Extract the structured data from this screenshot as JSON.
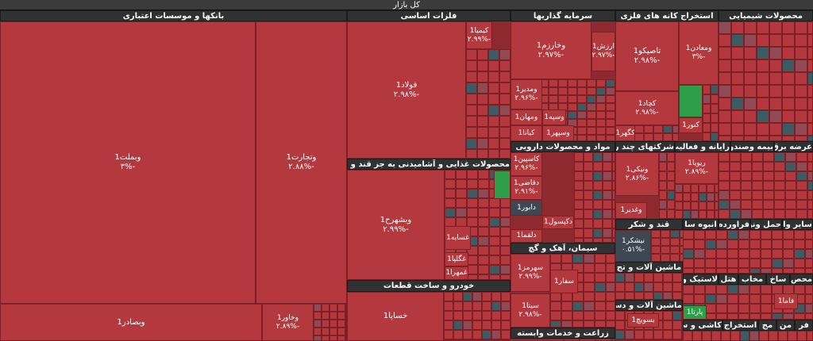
{
  "title": "کل بازار",
  "groups": [
    "بانکها و موسسات اعتباری",
    "فلزات اساسی",
    "سرمایه گذاریها",
    "استخراج کانه های فلزی",
    "محصولات شیمیایی",
    "محصولات غذایی و آشامیدنی به جز قند و شکر",
    "خودرو و ساخت قطعات",
    "مواد و محصولات دارویی",
    "سیمان، آهک و گچ",
    "زراعت و خدمات وابسته",
    "شرکتهای چند ر",
    "رایانه و فعالیت",
    "بیمه وصندو",
    "عرضه برق",
    "قند و شکر",
    "انبوه سا",
    "فراورده",
    "حمل ونق",
    "سایر وا",
    "ماشین آلات و تج",
    "ماشین آلات و دست",
    "لاستیک و پ",
    "هتل",
    "مخاب",
    "ساخ",
    "محص",
    "کاشی و سر",
    "استخراج",
    "مج",
    "من",
    "فر"
  ],
  "cells": [
    {
      "name": "وبملت1",
      "change": "-۳%"
    },
    {
      "name": "وتجارت1",
      "change": "-۲.۸۸%"
    },
    {
      "name": "وبصادر1"
    },
    {
      "name": "وخاور1",
      "change": "-۲.۸۹%"
    },
    {
      "name": "فولاد1",
      "change": "-۲.۹۸%"
    },
    {
      "name": "کیمیا1",
      "change": "-۲.۹۹%"
    },
    {
      "name": "وبشهرح1",
      "change": "-۲.۹۹%"
    },
    {
      "name": "خساپا1"
    },
    {
      "name": "غسایه1"
    },
    {
      "name": "غگلپا1"
    },
    {
      "name": "غمهرا1"
    },
    {
      "name": "وخارزم1",
      "change": "-۲.۹۷%"
    },
    {
      "name": "ارزش1",
      "change": "-۲.۹۷%"
    },
    {
      "name": "ومدیر1",
      "change": "-۲.۹۶%"
    },
    {
      "name": "ومهان1"
    },
    {
      "name": "کیانا1"
    },
    {
      "name": "وسپه1"
    },
    {
      "name": "وسپهر1"
    },
    {
      "name": "کاسپین1",
      "change": "-۲.۹۶%"
    },
    {
      "name": "دقاضی1",
      "change": "-۲.۹۱%"
    },
    {
      "name": "دابور1"
    },
    {
      "name": "دکپسول1"
    },
    {
      "name": "دلقما1"
    },
    {
      "name": "سهرمز1",
      "change": "-۲.۹۹%"
    },
    {
      "name": "سفار1"
    },
    {
      "name": "سیتا1",
      "change": "-۲.۹۸%"
    },
    {
      "name": "تاصیکو1",
      "change": "-۲.۹۸%"
    },
    {
      "name": "ومعادن1",
      "change": "-۳%"
    },
    {
      "name": "کچاد1",
      "change": "-۲.۹۸%"
    },
    {
      "name": "کگهر1"
    },
    {
      "name": "کنور1"
    },
    {
      "name": "ونیکی1",
      "change": "-۲.۸۶%"
    },
    {
      "name": "وغدیر1"
    },
    {
      "name": "نیشکر1",
      "change": "-۰.۵۱%"
    },
    {
      "name": "ریویا1",
      "change": "-۲.۸۹%"
    },
    {
      "name": "بسویچ1"
    },
    {
      "name": "پارتا1"
    },
    {
      "name": "فاما1"
    }
  ]
}
